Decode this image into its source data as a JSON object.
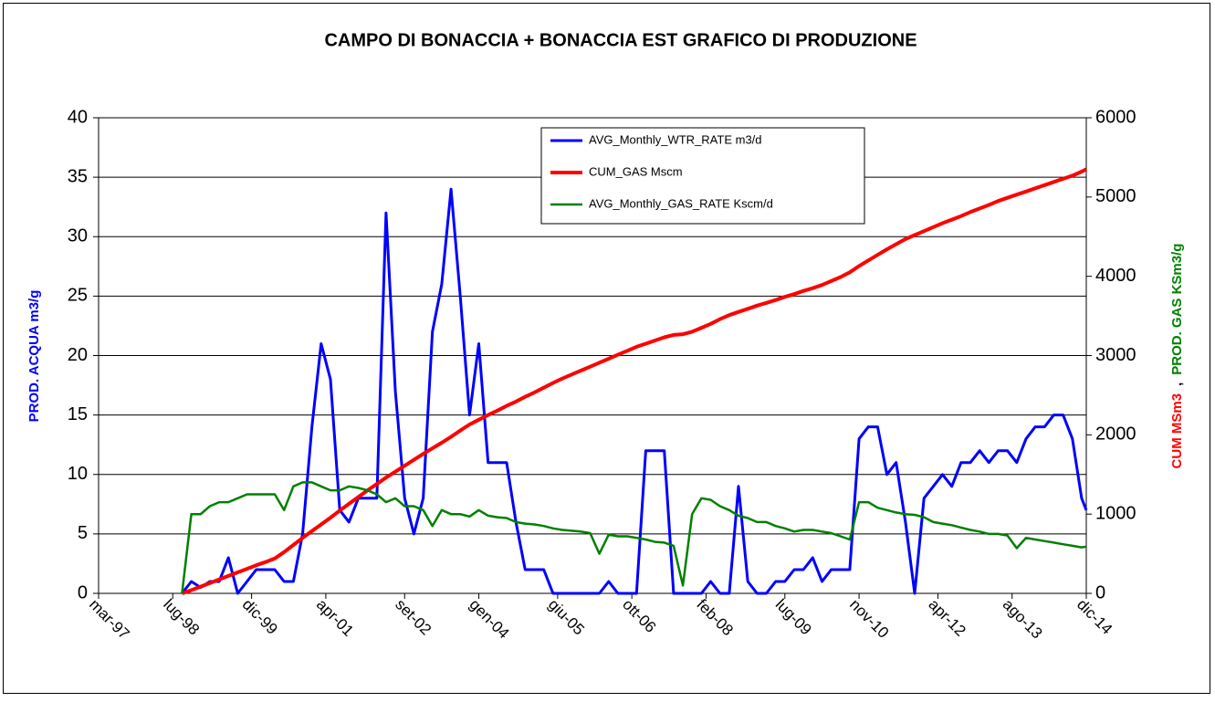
{
  "chart_data": {
    "type": "line",
    "title": "CAMPO DI BONACCIA + BONACCIA EST  GRAFICO DI PRODUZIONE",
    "ylabel": "PROD. ACQUA m3/g",
    "ylabel_color": "#0000ff",
    "y2label_parts": [
      {
        "text": "CUM MSm3",
        "color": "#ff0000"
      },
      {
        "text": ",",
        "color": "#000000"
      },
      {
        "text": "PROD. GAS KSm3/g",
        "color": "#008000"
      }
    ],
    "x": [
      "1998-09",
      "1998-11",
      "1999-01",
      "1999-03",
      "1999-05",
      "1999-07",
      "1999-09",
      "1999-11",
      "2000-01",
      "2000-03",
      "2000-05",
      "2000-07",
      "2000-09",
      "2000-11",
      "2001-01",
      "2001-03",
      "2001-05",
      "2001-07",
      "2001-09",
      "2001-11",
      "2002-01",
      "2002-03",
      "2002-05",
      "2002-07",
      "2002-09",
      "2002-11",
      "2003-01",
      "2003-03",
      "2003-05",
      "2003-07",
      "2003-09",
      "2003-11",
      "2004-01",
      "2004-03",
      "2004-05",
      "2004-07",
      "2004-09",
      "2004-11",
      "2005-01",
      "2005-03",
      "2005-05",
      "2005-07",
      "2005-09",
      "2005-11",
      "2006-01",
      "2006-03",
      "2006-05",
      "2006-07",
      "2006-09",
      "2006-11",
      "2007-01",
      "2007-03",
      "2007-05",
      "2007-07",
      "2007-09",
      "2007-11",
      "2008-01",
      "2008-03",
      "2008-05",
      "2008-07",
      "2008-09",
      "2008-11",
      "2009-01",
      "2009-03",
      "2009-05",
      "2009-07",
      "2009-09",
      "2009-11",
      "2010-01",
      "2010-03",
      "2010-05",
      "2010-07",
      "2010-09",
      "2010-11",
      "2011-01",
      "2011-03",
      "2011-05",
      "2011-07",
      "2011-09",
      "2011-11",
      "2012-01",
      "2012-03",
      "2012-05",
      "2012-07",
      "2012-09",
      "2012-11",
      "2013-01",
      "2013-03",
      "2013-05",
      "2013-07",
      "2013-09",
      "2013-11",
      "2014-01",
      "2014-03",
      "2014-05",
      "2014-07",
      "2014-09",
      "2014-11",
      "2014-12"
    ],
    "series": [
      {
        "name": "AVG_Monthly_WTR_RATE m3/d",
        "color": "#0000ff",
        "axis": "y",
        "width": 3,
        "values": [
          0,
          1,
          0.5,
          1,
          1,
          3,
          0,
          1,
          2,
          2,
          2,
          1,
          1,
          5,
          14,
          21,
          18,
          7,
          6,
          8,
          8,
          8,
          32,
          17,
          8,
          5,
          8,
          22,
          26,
          34,
          25,
          15,
          21,
          11,
          11,
          11,
          6,
          2,
          2,
          2,
          0,
          0,
          0,
          0,
          0,
          0,
          1,
          0,
          0,
          0,
          12,
          12,
          12,
          0,
          0,
          0,
          0,
          1,
          0,
          0,
          9,
          1,
          0,
          0,
          1,
          1,
          2,
          2,
          3,
          1,
          2,
          2,
          2,
          13,
          14,
          14,
          10,
          11,
          6,
          0,
          8,
          9,
          10,
          9,
          11,
          11,
          12,
          11,
          12,
          12,
          11,
          13,
          14,
          14,
          15,
          15,
          13,
          8,
          7
        ]
      },
      {
        "name": "CUM_GAS Mscm",
        "color": "#ff0000",
        "axis": "y2",
        "width": 4,
        "values": [
          0,
          40,
          85,
          130,
          175,
          220,
          265,
          310,
          355,
          395,
          440,
          520,
          610,
          700,
          785,
          870,
          955,
          1045,
          1130,
          1215,
          1300,
          1380,
          1460,
          1535,
          1610,
          1685,
          1760,
          1830,
          1900,
          1975,
          2055,
          2130,
          2190,
          2250,
          2305,
          2365,
          2420,
          2480,
          2535,
          2595,
          2655,
          2710,
          2760,
          2810,
          2860,
          2910,
          2960,
          3010,
          3060,
          3110,
          3150,
          3190,
          3230,
          3260,
          3270,
          3300,
          3350,
          3400,
          3460,
          3510,
          3550,
          3590,
          3630,
          3665,
          3700,
          3740,
          3775,
          3815,
          3850,
          3890,
          3940,
          3990,
          4050,
          4130,
          4200,
          4270,
          4340,
          4405,
          4470,
          4520,
          4570,
          4620,
          4670,
          4715,
          4760,
          4810,
          4855,
          4900,
          4950,
          4990,
          5030,
          5070,
          5110,
          5150,
          5190,
          5230,
          5270,
          5320,
          5350
        ]
      },
      {
        "name": "AVG_Monthly_GAS_RATE Kscm/d",
        "color": "#008000",
        "axis": "y2",
        "width": 2.5,
        "values": [
          0,
          1000,
          1000,
          1100,
          1150,
          1150,
          1200,
          1250,
          1250,
          1250,
          1250,
          1050,
          1350,
          1400,
          1400,
          1350,
          1300,
          1300,
          1350,
          1330,
          1300,
          1250,
          1150,
          1200,
          1100,
          1100,
          1050,
          850,
          1050,
          1000,
          1000,
          970,
          1050,
          980,
          960,
          950,
          900,
          880,
          870,
          850,
          820,
          800,
          790,
          780,
          760,
          500,
          740,
          720,
          720,
          700,
          680,
          650,
          640,
          600,
          100,
          1000,
          1200,
          1180,
          1100,
          1050,
          980,
          950,
          900,
          900,
          850,
          820,
          780,
          800,
          800,
          780,
          760,
          720,
          680,
          1150,
          1150,
          1080,
          1050,
          1020,
          1000,
          990,
          960,
          900,
          880,
          860,
          830,
          800,
          780,
          750,
          750,
          730,
          570,
          700,
          680,
          660,
          640,
          620,
          600,
          580,
          590
        ]
      }
    ],
    "xlim": [
      "1997-03",
      "2014-12"
    ],
    "xticks": [
      {
        "value": "1997-03",
        "label": "mar-97"
      },
      {
        "value": "1998-07",
        "label": "lug-98"
      },
      {
        "value": "1999-12",
        "label": "dic-99"
      },
      {
        "value": "2001-04",
        "label": "apr-01"
      },
      {
        "value": "2002-09",
        "label": "set-02"
      },
      {
        "value": "2004-01",
        "label": "gen-04"
      },
      {
        "value": "2005-06",
        "label": "giu-05"
      },
      {
        "value": "2006-10",
        "label": "ott-06"
      },
      {
        "value": "2008-02",
        "label": "feb-08"
      },
      {
        "value": "2009-07",
        "label": "lug-09"
      },
      {
        "value": "2010-11",
        "label": "nov-10"
      },
      {
        "value": "2012-04",
        "label": "apr-12"
      },
      {
        "value": "2013-08",
        "label": "ago-13"
      },
      {
        "value": "2014-12",
        "label": "dic-14"
      }
    ],
    "ylim": [
      0,
      40
    ],
    "yticks": [
      0,
      5,
      10,
      15,
      20,
      25,
      30,
      35,
      40
    ],
    "y2lim": [
      0,
      6000
    ],
    "y2ticks": [
      0,
      1000,
      2000,
      3000,
      4000,
      5000,
      6000
    ],
    "grid": true,
    "legend": "top"
  }
}
